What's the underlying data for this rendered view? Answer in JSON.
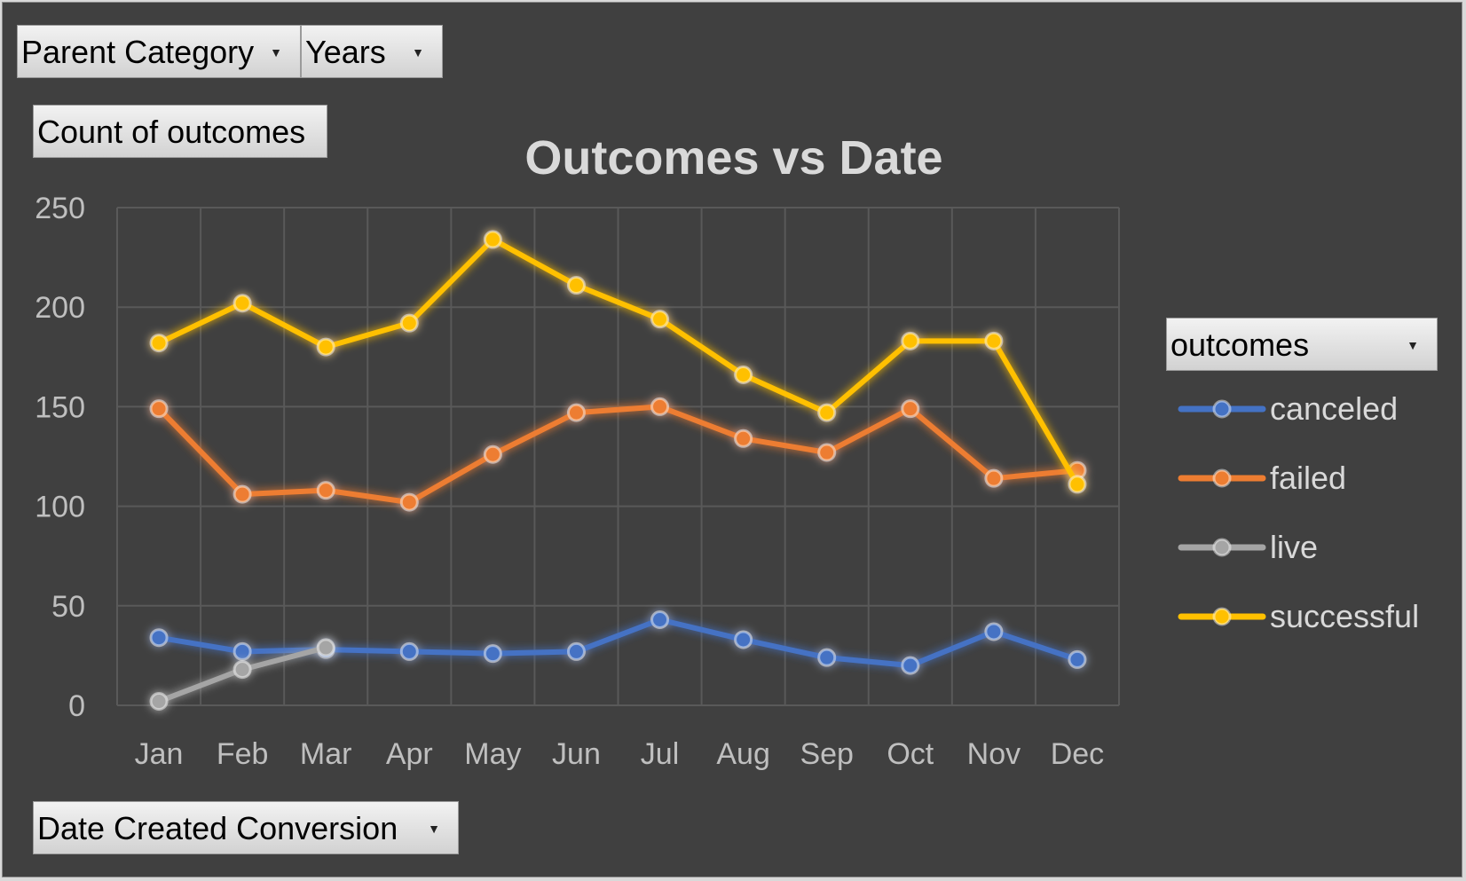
{
  "filters": {
    "parent_category": "Parent Category",
    "years": "Years",
    "values_field": "Count of outcomes",
    "axis_field": "Date Created Conversion",
    "legend_field": "outcomes"
  },
  "icons": {
    "dropdown": "dropdown-arrow-icon"
  },
  "colors": {
    "background": "#404040",
    "gridline": "#595959",
    "canceled": "#4472c4",
    "failed": "#ed7d31",
    "live": "#a5a5a5",
    "successful": "#ffc000"
  },
  "chart_data": {
    "type": "line",
    "title": "Outcomes vs Date",
    "xlabel": "",
    "ylabel": "",
    "categories": [
      "Jan",
      "Feb",
      "Mar",
      "Apr",
      "May",
      "Jun",
      "Jul",
      "Aug",
      "Sep",
      "Oct",
      "Nov",
      "Dec"
    ],
    "ylim": [
      0,
      250
    ],
    "yticks": [
      0,
      50,
      100,
      150,
      200,
      250
    ],
    "grid": true,
    "legend_position": "right",
    "series": [
      {
        "name": "canceled",
        "color": "#4472c4",
        "values": [
          34,
          27,
          28,
          27,
          26,
          27,
          43,
          33,
          24,
          20,
          37,
          23
        ]
      },
      {
        "name": "failed",
        "color": "#ed7d31",
        "values": [
          149,
          106,
          108,
          102,
          126,
          147,
          150,
          134,
          127,
          149,
          114,
          118
        ]
      },
      {
        "name": "live",
        "color": "#a5a5a5",
        "values": [
          2,
          18,
          29,
          null,
          null,
          null,
          null,
          null,
          null,
          null,
          null,
          null
        ]
      },
      {
        "name": "successful",
        "color": "#ffc000",
        "values": [
          182,
          202,
          180,
          192,
          234,
          211,
          194,
          166,
          147,
          183,
          183,
          111
        ]
      }
    ]
  }
}
